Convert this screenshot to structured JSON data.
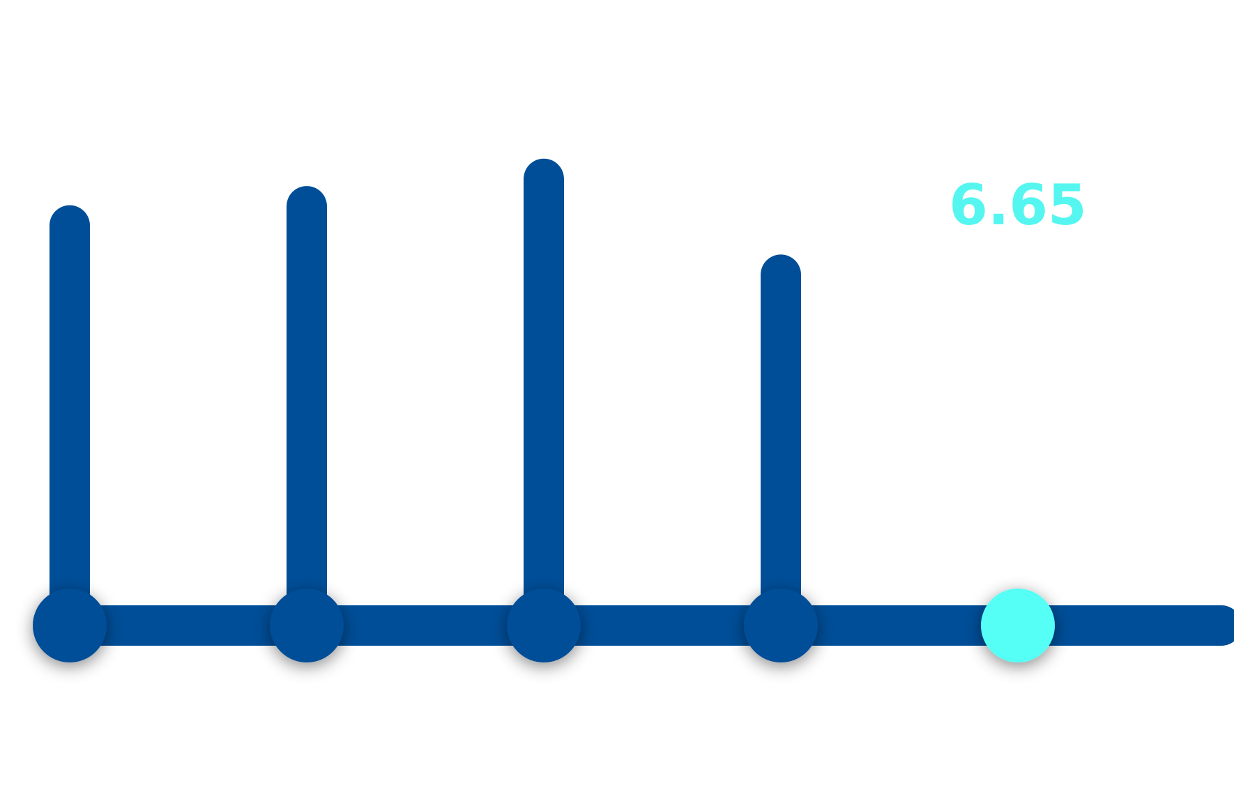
{
  "chart_data": {
    "type": "lollipop",
    "categories": [
      "",
      "",
      "",
      "",
      ""
    ],
    "values": [
      7.3,
      7.65,
      8.15,
      6.4,
      6.65
    ],
    "highlight_index": 4,
    "highlight_label": "6.65",
    "ylim": [
      0,
      11.4
    ],
    "grid": false,
    "legend": "none",
    "colors": {
      "bar": "#004e98",
      "highlight_top": "#00c8db",
      "highlight_bottom": "#55fff5",
      "label": "#55f6f0"
    }
  }
}
